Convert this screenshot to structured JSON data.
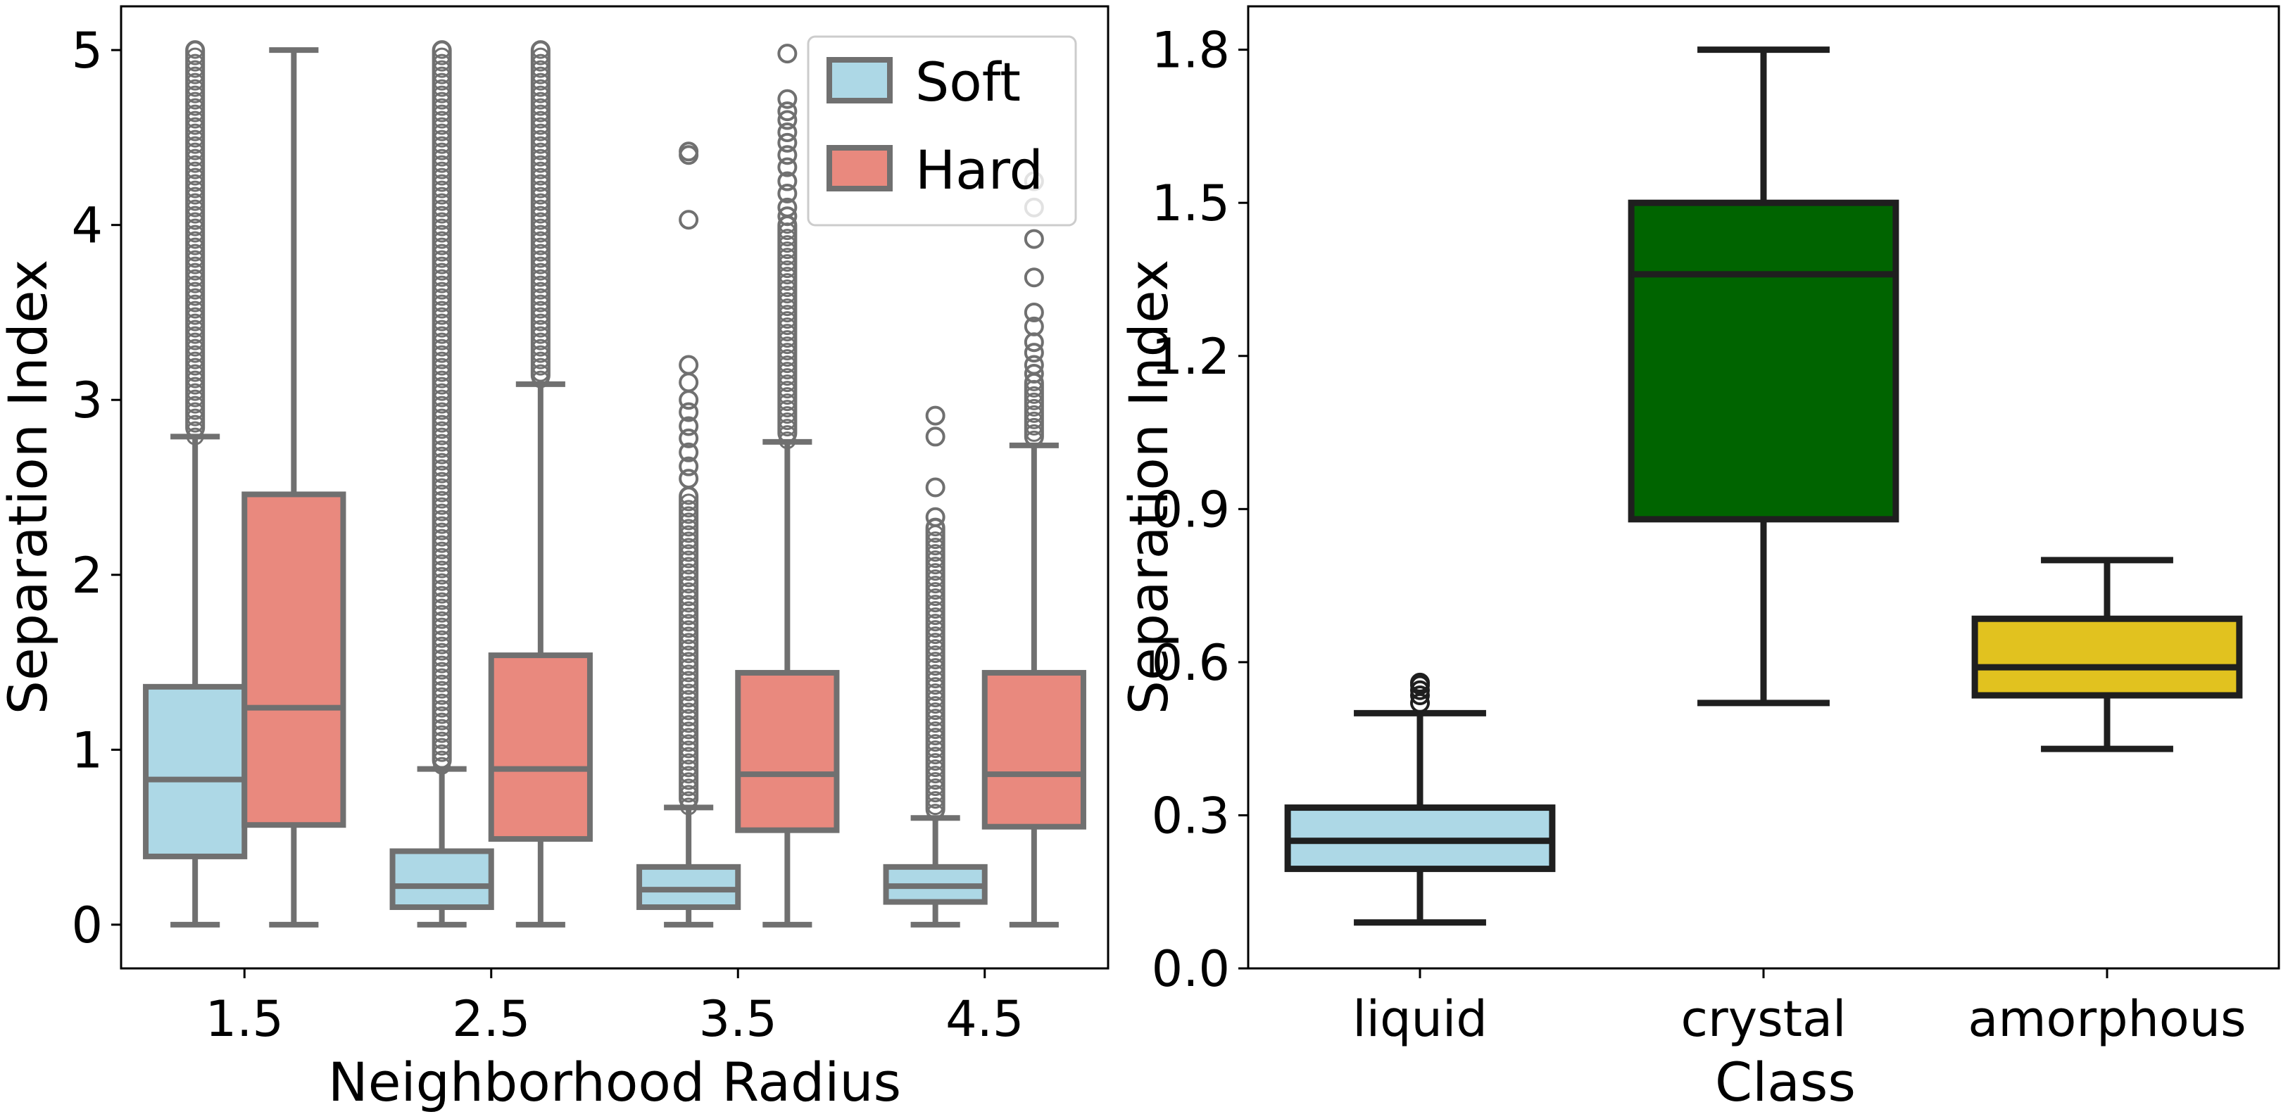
{
  "chart_data": [
    {
      "type": "box",
      "xlabel": "Neighborhood Radius",
      "ylabel": "Separation Index",
      "categories": [
        "1.5",
        "2.5",
        "3.5",
        "4.5"
      ],
      "ylim": [
        -0.25,
        5.25
      ],
      "yticks": [
        "0",
        "1",
        "2",
        "3",
        "4",
        "5"
      ],
      "legend": {
        "placement": "top-right"
      },
      "line_color": "#707070",
      "series": [
        {
          "name": "Soft",
          "color": "#add8e6",
          "boxes": [
            {
              "whisker_low": 0,
              "q1": 0.39,
              "median": 0.83,
              "q3": 1.36,
              "whisker_high": 2.79,
              "outlier_range": [
                2.79,
                5.0
              ],
              "outliers": []
            },
            {
              "whisker_low": 0,
              "q1": 0.1,
              "median": 0.22,
              "q3": 0.42,
              "whisker_high": 0.89,
              "outlier_range": [
                0.89,
                5.0
              ],
              "outliers": []
            },
            {
              "whisker_low": 0,
              "q1": 0.1,
              "median": 0.2,
              "q3": 0.33,
              "whisker_high": 0.67,
              "outlier_range": [
                0.67,
                2.45
              ],
              "outliers": [
                2.55,
                2.62,
                2.7,
                2.78,
                2.85,
                2.93,
                3.0,
                3.1,
                3.2,
                4.03,
                4.4,
                4.42
              ]
            },
            {
              "whisker_low": 0,
              "q1": 0.13,
              "median": 0.22,
              "q3": 0.33,
              "whisker_high": 0.61,
              "outlier_range": [
                0.61,
                2.27
              ],
              "outliers": [
                2.33,
                2.5,
                2.79,
                2.91
              ]
            }
          ]
        },
        {
          "name": "Hard",
          "color": "#e9897e",
          "boxes": [
            {
              "whisker_low": 0,
              "q1": 0.57,
              "median": 1.24,
              "q3": 2.46,
              "whisker_high": 5.0,
              "outlier_range": null,
              "outliers": []
            },
            {
              "whisker_low": 0,
              "q1": 0.49,
              "median": 0.89,
              "q3": 1.54,
              "whisker_high": 3.09,
              "outlier_range": [
                3.09,
                5.0
              ],
              "outliers": []
            },
            {
              "whisker_low": 0,
              "q1": 0.54,
              "median": 0.86,
              "q3": 1.44,
              "whisker_high": 2.76,
              "outlier_range": [
                2.76,
                4.0
              ],
              "outliers": [
                4.05,
                4.1,
                4.18,
                4.25,
                4.33,
                4.4,
                4.47,
                4.53,
                4.6,
                4.65,
                4.72,
                4.98
              ]
            },
            {
              "whisker_low": 0,
              "q1": 0.56,
              "median": 0.86,
              "q3": 1.44,
              "whisker_high": 2.74,
              "outlier_range": [
                2.74,
                3.1
              ],
              "outliers": [
                3.15,
                3.2,
                3.27,
                3.33,
                3.42,
                3.5,
                3.7,
                3.92,
                4.1,
                4.25
              ]
            }
          ]
        }
      ]
    },
    {
      "type": "box",
      "xlabel": "Class",
      "ylabel": "Separation Index",
      "categories": [
        "liquid",
        "crystal",
        "amorphous"
      ],
      "ylim": [
        0.0,
        1.885
      ],
      "yticks": [
        "0.0",
        "0.3",
        "0.6",
        "0.9",
        "1.2",
        "1.5",
        "1.8"
      ],
      "line_color": "#1f1f1f",
      "boxes": [
        {
          "category": "liquid",
          "color": "#add8e6",
          "whisker_low": 0.09,
          "q1": 0.195,
          "median": 0.25,
          "q3": 0.315,
          "whisker_high": 0.5,
          "outliers": [
            0.52,
            0.535,
            0.545,
            0.555,
            0.56
          ]
        },
        {
          "category": "crystal",
          "color": "#006400",
          "whisker_low": 0.52,
          "q1": 0.88,
          "median": 1.36,
          "q3": 1.5,
          "whisker_high": 1.8,
          "outliers": []
        },
        {
          "category": "amorphous",
          "color": "#e1c21f",
          "whisker_low": 0.43,
          "q1": 0.535,
          "median": 0.59,
          "q3": 0.685,
          "whisker_high": 0.8,
          "outliers": []
        }
      ]
    }
  ]
}
